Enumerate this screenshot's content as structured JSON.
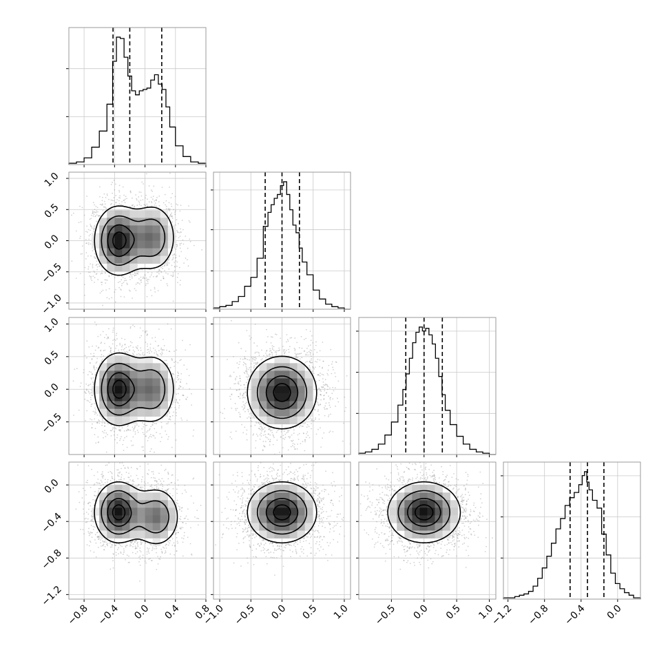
{
  "figure": {
    "type": "corner_plot",
    "colors": {
      "background": "#ffffff",
      "frame": "#9a9a9a",
      "grid": "#c9c9c9",
      "line": "#000000",
      "points": "#9a9a9a",
      "density_max": "#111111"
    }
  },
  "chart_data": [
    {
      "id": "hist-p0",
      "type": "bar",
      "variable": "p0",
      "range": [
        -1.0,
        0.8
      ],
      "bins": [
        -0.95,
        -0.85,
        -0.75,
        -0.65,
        -0.55,
        -0.45,
        -0.4,
        -0.35,
        -0.3,
        -0.25,
        -0.2,
        -0.15,
        -0.1,
        -0.05,
        0.0,
        0.05,
        0.1,
        0.15,
        0.2,
        0.25,
        0.3,
        0.35,
        0.45,
        0.55,
        0.65,
        0.75
      ],
      "values": [
        0.01,
        0.02,
        0.05,
        0.13,
        0.25,
        0.45,
        0.77,
        0.95,
        0.94,
        0.8,
        0.66,
        0.55,
        0.52,
        0.55,
        0.56,
        0.57,
        0.63,
        0.67,
        0.6,
        0.56,
        0.43,
        0.28,
        0.14,
        0.06,
        0.02,
        0.01
      ],
      "quantiles": [
        -0.42,
        -0.2,
        0.22
      ],
      "xticks": [
        -0.8,
        -0.4,
        0.0,
        0.4,
        0.8
      ],
      "ytick_fractions": [
        0.35,
        0.7
      ]
    },
    {
      "id": "hist-p1",
      "type": "bar",
      "variable": "p1",
      "range": [
        -1.1,
        1.1
      ],
      "bins": [
        -1.05,
        -0.95,
        -0.85,
        -0.75,
        -0.65,
        -0.55,
        -0.45,
        -0.35,
        -0.25,
        -0.2,
        -0.15,
        -0.1,
        -0.05,
        0.0,
        0.05,
        0.1,
        0.15,
        0.2,
        0.25,
        0.3,
        0.35,
        0.45,
        0.55,
        0.65,
        0.75,
        0.85,
        0.95,
        1.05
      ],
      "values": [
        0.01,
        0.02,
        0.03,
        0.06,
        0.1,
        0.18,
        0.25,
        0.4,
        0.65,
        0.76,
        0.82,
        0.87,
        0.9,
        0.97,
        1.0,
        0.9,
        0.78,
        0.66,
        0.6,
        0.48,
        0.37,
        0.27,
        0.15,
        0.08,
        0.04,
        0.02,
        0.01,
        0.0
      ],
      "quantiles": [
        -0.27,
        0.0,
        0.28
      ],
      "xticks": [
        -1.0,
        -0.5,
        0.0,
        0.5,
        1.0
      ],
      "ytick_fractions": [
        0.28,
        0.58,
        0.87
      ]
    },
    {
      "id": "hist-p2",
      "type": "bar",
      "variable": "p2",
      "range": [
        -1.0,
        1.1
      ],
      "bins": [
        -0.95,
        -0.85,
        -0.75,
        -0.65,
        -0.55,
        -0.45,
        -0.35,
        -0.3,
        -0.25,
        -0.2,
        -0.15,
        -0.1,
        -0.05,
        0.0,
        0.05,
        0.1,
        0.15,
        0.2,
        0.25,
        0.3,
        0.35,
        0.45,
        0.55,
        0.65,
        0.75,
        0.85,
        0.95,
        1.05
      ],
      "values": [
        0.01,
        0.02,
        0.04,
        0.08,
        0.15,
        0.25,
        0.38,
        0.5,
        0.62,
        0.74,
        0.86,
        0.94,
        0.98,
        0.95,
        0.97,
        0.92,
        0.85,
        0.74,
        0.6,
        0.46,
        0.34,
        0.23,
        0.14,
        0.08,
        0.04,
        0.02,
        0.01,
        0.0
      ],
      "quantiles": [
        -0.28,
        0.0,
        0.28
      ],
      "xticks": [
        -0.5,
        0.0,
        0.5,
        1.0
      ],
      "ytick_fractions": [
        0.3,
        0.6,
        0.9
      ]
    },
    {
      "id": "hist-p3",
      "type": "bar",
      "variable": "p3",
      "range": [
        -1.25,
        0.25
      ],
      "bins": [
        -1.2,
        -1.15,
        -1.1,
        -1.05,
        -1.0,
        -0.95,
        -0.9,
        -0.85,
        -0.8,
        -0.75,
        -0.7,
        -0.65,
        -0.6,
        -0.55,
        -0.5,
        -0.45,
        -0.4,
        -0.375,
        -0.35,
        -0.325,
        -0.3,
        -0.25,
        -0.2,
        -0.15,
        -0.1,
        -0.05,
        0.0,
        0.05,
        0.1,
        0.15,
        0.2
      ],
      "values": [
        0.01,
        0.01,
        0.02,
        0.03,
        0.04,
        0.06,
        0.1,
        0.16,
        0.24,
        0.33,
        0.43,
        0.54,
        0.62,
        0.72,
        0.78,
        0.82,
        0.88,
        0.95,
        0.98,
        0.9,
        0.84,
        0.76,
        0.7,
        0.5,
        0.34,
        0.2,
        0.12,
        0.08,
        0.05,
        0.03,
        0.01
      ],
      "quantiles": [
        -0.52,
        -0.33,
        -0.15
      ],
      "xticks": [
        -1.2,
        -0.8,
        -0.4,
        0.0
      ],
      "ytick_fractions": [
        0.3,
        0.6,
        0.9
      ]
    },
    {
      "id": "pair-p0-p1",
      "type": "scatter",
      "x_var": "p0",
      "y_var": "p1",
      "modes": [
        [
          -0.35,
          0.0,
          0.6
        ],
        [
          0.1,
          0.05,
          0.4
        ]
      ],
      "spread": [
        0.17,
        0.3
      ],
      "xticks": [
        -0.8,
        -0.4,
        0.0,
        0.4,
        0.8
      ],
      "yticks": [
        -1.0,
        -0.5,
        0.0,
        0.5,
        1.0
      ],
      "ytick_labels": [
        "−1.0",
        "−0.5",
        "0.0",
        "0.5",
        "1.0"
      ]
    },
    {
      "id": "pair-p0-p2",
      "type": "scatter",
      "x_var": "p0",
      "y_var": "p2",
      "modes": [
        [
          -0.35,
          0.0,
          0.6
        ],
        [
          0.1,
          0.0,
          0.4
        ]
      ],
      "spread": [
        0.17,
        0.3
      ],
      "xticks": [
        -0.8,
        -0.4,
        0.0,
        0.4,
        0.8
      ],
      "yticks": [
        -0.5,
        0.0,
        0.5,
        1.0
      ],
      "ytick_labels": [
        "−0.5",
        "0.0",
        "0.5",
        "1.0"
      ]
    },
    {
      "id": "pair-p1-p2",
      "type": "scatter",
      "x_var": "p1",
      "y_var": "p2",
      "modes": [
        [
          0.0,
          -0.05,
          1.0
        ]
      ],
      "spread": [
        0.3,
        0.3
      ],
      "xticks": [
        -1.0,
        -0.5,
        0.0,
        0.5,
        1.0
      ],
      "yticks": [
        -0.5,
        0.0,
        0.5,
        1.0
      ]
    },
    {
      "id": "pair-p0-p3",
      "type": "scatter",
      "x_var": "p0",
      "y_var": "p3",
      "modes": [
        [
          -0.35,
          -0.3,
          0.6
        ],
        [
          0.15,
          -0.35,
          0.4
        ]
      ],
      "spread": [
        0.17,
        0.18
      ],
      "xticks": [
        -0.8,
        -0.4,
        0.0,
        0.4,
        0.8
      ],
      "xtick_labels": [
        "−0.8",
        "−0.4",
        "0.0",
        "0.4",
        "0.8"
      ],
      "yticks": [
        -1.2,
        -0.8,
        -0.4,
        0.0
      ],
      "ytick_labels": [
        "−1.2",
        "−0.8",
        "−0.4",
        "0.0"
      ]
    },
    {
      "id": "pair-p1-p3",
      "type": "scatter",
      "x_var": "p1",
      "y_var": "p3",
      "modes": [
        [
          0.0,
          -0.3,
          1.0
        ]
      ],
      "spread": [
        0.3,
        0.18
      ],
      "xticks": [
        -1.0,
        -0.5,
        0.0,
        0.5,
        1.0
      ],
      "xtick_labels": [
        "−1.0",
        "−0.5",
        "0.0",
        "0.5",
        "1.0"
      ],
      "yticks": [
        -1.2,
        -0.8,
        -0.4,
        0.0
      ]
    },
    {
      "id": "pair-p2-p3",
      "type": "scatter",
      "x_var": "p2",
      "y_var": "p3",
      "modes": [
        [
          0.0,
          -0.3,
          1.0
        ]
      ],
      "spread": [
        0.3,
        0.18
      ],
      "xticks": [
        -0.5,
        0.0,
        0.5,
        1.0
      ],
      "xtick_labels": [
        "−0.5",
        "0.0",
        "0.5",
        "1.0"
      ],
      "yticks": [
        -1.2,
        -0.8,
        -0.4,
        0.0
      ]
    },
    {
      "id": "xaxis-p3",
      "type": "axis",
      "xticks": [
        -1.2,
        -0.8,
        -0.4,
        0.0
      ],
      "xtick_labels": [
        "−1.2",
        "−0.8",
        "−0.4",
        "0.0"
      ]
    }
  ]
}
